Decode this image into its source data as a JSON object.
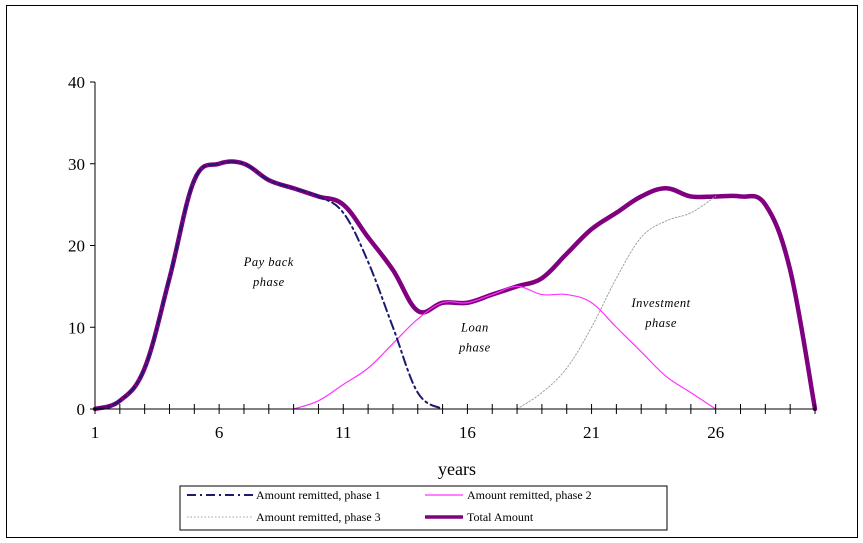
{
  "chart_data": {
    "type": "line",
    "title": "",
    "xlabel": "years",
    "ylabel": "",
    "xlim": [
      1,
      30
    ],
    "ylim": [
      0,
      40
    ],
    "x_ticks": [
      1,
      6,
      11,
      16,
      21,
      26
    ],
    "y_ticks": [
      0,
      10,
      20,
      30,
      40
    ],
    "grid": false,
    "legend_position": "bottom",
    "annotations": [
      {
        "text": "Pay back phase",
        "lines": [
          "Pay back",
          "phase"
        ],
        "x": 8.0,
        "y": 17.5
      },
      {
        "text": "Loan phase",
        "lines": [
          "Loan",
          "phase"
        ],
        "x": 16.3,
        "y": 9.5
      },
      {
        "text": "Investment phase",
        "lines": [
          "Investment",
          "phase"
        ],
        "x": 23.8,
        "y": 12.5
      }
    ],
    "series": [
      {
        "name": "Amount remitted, phase 1",
        "color": "#1a1a6e",
        "style": "dashdot",
        "x": [
          1,
          2,
          3,
          4,
          5,
          6,
          7,
          8,
          9,
          10,
          11,
          12,
          13,
          14,
          15
        ],
        "y": [
          0,
          1,
          5,
          16,
          28,
          30,
          30,
          28,
          27,
          26,
          24,
          18,
          10,
          2,
          0
        ]
      },
      {
        "name": "Amount remitted, phase 2",
        "color": "#ff33ff",
        "style": "solid",
        "x": [
          9,
          10,
          11,
          12,
          13,
          14,
          15,
          16,
          17,
          18,
          19,
          20,
          21,
          22,
          23,
          24,
          25,
          26
        ],
        "y": [
          0,
          1,
          3,
          5,
          8,
          11,
          13,
          13,
          14,
          15,
          14,
          14,
          13,
          10,
          7,
          4,
          2,
          0
        ]
      },
      {
        "name": "Amount remitted, phase 3",
        "color": "#a0a0a0",
        "style": "dotted",
        "x": [
          18,
          19,
          20,
          21,
          22,
          23,
          24,
          25,
          26
        ],
        "y": [
          0,
          2,
          5,
          10,
          16,
          21,
          23,
          24,
          26
        ]
      },
      {
        "name": "Total Amount",
        "color": "#800080",
        "style": "thick",
        "x": [
          1,
          2,
          3,
          4,
          5,
          6,
          7,
          8,
          9,
          10,
          11,
          12,
          13,
          14,
          15,
          16,
          17,
          18,
          19,
          20,
          21,
          22,
          23,
          24,
          25,
          26,
          27,
          28,
          29,
          30
        ],
        "y": [
          0,
          1,
          5,
          16,
          28,
          30,
          30,
          28,
          27,
          26,
          25,
          21,
          17,
          12,
          13,
          13,
          14,
          15,
          16,
          19,
          22,
          24,
          26,
          27,
          26,
          26,
          26,
          25,
          17,
          0
        ]
      }
    ]
  }
}
